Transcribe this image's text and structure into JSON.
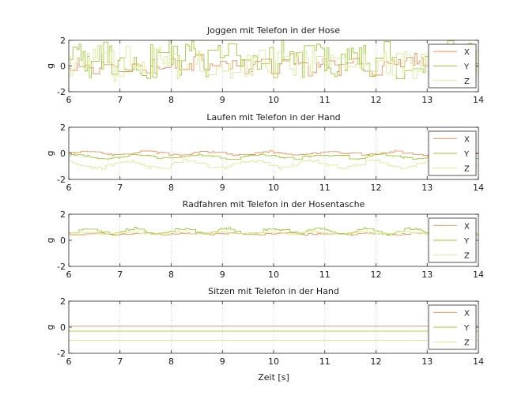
{
  "chart_data": [
    {
      "type": "line",
      "title": "Joggen mit Telefon in der Hose",
      "ylabel": "g",
      "xlim": [
        6,
        14
      ],
      "ylim": [
        -2,
        2
      ],
      "xticks": [
        "6",
        "7",
        "8",
        "9",
        "10",
        "11",
        "12",
        "13",
        "14"
      ],
      "yticks": [
        "-2",
        "0",
        "2"
      ],
      "legend_position": "right",
      "series": [
        {
          "name": "X",
          "color": "#f0905a",
          "center": 0.1,
          "amp": 0.65,
          "osc": 0.25,
          "period": 0.6,
          "seed": 11
        },
        {
          "name": "Y",
          "color": "#9acd32",
          "center": 0.6,
          "amp": 1.35,
          "osc": 0.3,
          "period": 0.6,
          "seed": 23
        },
        {
          "name": "Z",
          "color": "#d8ec94",
          "center": 0.2,
          "amp": 1.2,
          "osc": 0.2,
          "period": 0.6,
          "seed": 37
        }
      ]
    },
    {
      "type": "line",
      "title": "Laufen mit Telefon in der Hand",
      "ylabel": "g",
      "xlim": [
        6,
        14
      ],
      "ylim": [
        -2,
        2
      ],
      "xticks": [
        "6",
        "7",
        "8",
        "9",
        "10",
        "11",
        "12",
        "13",
        "14"
      ],
      "yticks": [
        "-2",
        "0",
        "2"
      ],
      "legend_position": "right",
      "series": [
        {
          "name": "X",
          "color": "#f0905a",
          "center": 0.0,
          "amp": 0.08,
          "osc": 0.12,
          "period": 1.2,
          "seed": 41
        },
        {
          "name": "Y",
          "color": "#9acd32",
          "center": -0.25,
          "amp": 0.08,
          "osc": 0.15,
          "period": 1.2,
          "seed": 53
        },
        {
          "name": "Z",
          "color": "#d8ec94",
          "center": -0.85,
          "amp": 0.12,
          "osc": 0.3,
          "period": 1.2,
          "seed": 67
        }
      ]
    },
    {
      "type": "line",
      "title": "Radfahren mit Telefon in der Hosentasche",
      "ylabel": "g",
      "xlim": [
        6,
        14
      ],
      "ylim": [
        -2,
        2
      ],
      "xticks": [
        "6",
        "7",
        "8",
        "9",
        "10",
        "11",
        "12",
        "13",
        "14"
      ],
      "yticks": [
        "-2",
        "0",
        "2"
      ],
      "legend_position": "right",
      "series": [
        {
          "name": "X",
          "color": "#f0905a",
          "center": 0.5,
          "amp": 0.06,
          "osc": 0.05,
          "period": 0.9,
          "seed": 71
        },
        {
          "name": "Y",
          "color": "#9acd32",
          "center": 0.7,
          "amp": 0.1,
          "osc": 0.22,
          "period": 0.9,
          "seed": 83
        },
        {
          "name": "Z",
          "color": "#d8ec94",
          "center": 0.55,
          "amp": 0.06,
          "osc": 0.08,
          "period": 0.9,
          "seed": 97
        }
      ]
    },
    {
      "type": "line",
      "title": "Sitzen mit Telefon in der Hand",
      "ylabel": "g",
      "xlabel": "Zeit [s]",
      "xlim": [
        6,
        14
      ],
      "ylim": [
        -2,
        2
      ],
      "xticks": [
        "6",
        "7",
        "8",
        "9",
        "10",
        "11",
        "12",
        "13",
        "14"
      ],
      "yticks": [
        "-2",
        "0",
        "2"
      ],
      "legend_position": "right",
      "series": [
        {
          "name": "X",
          "color": "#f0905a",
          "center": 0.1,
          "amp": 0.0,
          "osc": 0.0,
          "period": 1.0,
          "seed": 101
        },
        {
          "name": "Y",
          "color": "#9acd32",
          "center": -0.3,
          "amp": 0.0,
          "osc": 0.0,
          "period": 1.0,
          "seed": 103
        },
        {
          "name": "Z",
          "color": "#d8ec94",
          "center": -1.0,
          "amp": 0.0,
          "osc": 0.0,
          "period": 1.0,
          "seed": 107
        }
      ]
    }
  ]
}
